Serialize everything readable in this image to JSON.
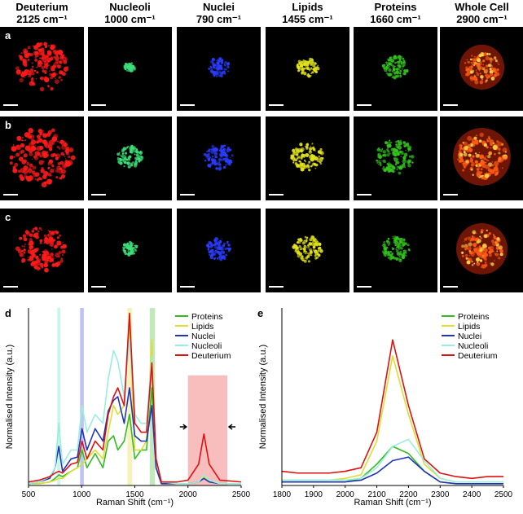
{
  "image_grid": {
    "columns": [
      {
        "name": "Deuterium",
        "wavenumber": "2125 cm⁻¹",
        "color": "#ff1a1a"
      },
      {
        "name": "Nucleoli",
        "wavenumber": "1000 cm⁻¹",
        "color": "#3de07a"
      },
      {
        "name": "Nuclei",
        "wavenumber": "790 cm⁻¹",
        "color": "#2a3cff"
      },
      {
        "name": "Lipids",
        "wavenumber": "1455 cm⁻¹",
        "color": "#e4e41e"
      },
      {
        "name": "Proteins",
        "wavenumber": "1660 cm⁻¹",
        "color": "#33c41c"
      },
      {
        "name": "Whole Cell",
        "wavenumber": "2900 cm⁻¹",
        "color": "#ff5a14"
      }
    ],
    "rows": [
      "a",
      "b",
      "c"
    ]
  },
  "chart_data": [
    {
      "type": "line",
      "panel": "d",
      "x_label": "Raman Shift (cm⁻¹)",
      "y_label": "Normalised Intensity (a.u.)",
      "xlim": [
        500,
        2500
      ],
      "xticks": [
        500,
        1000,
        1500,
        2000,
        2500
      ],
      "ylim": [
        0,
        1
      ],
      "yticks": [],
      "highlight_bands": [
        {
          "x": [
            770,
            800
          ],
          "color": "#bff3ea"
        },
        {
          "x": [
            985,
            1020
          ],
          "color": "#b4b8f0"
        },
        {
          "x": [
            1430,
            1475
          ],
          "color": "#f3f0b0"
        },
        {
          "x": [
            1640,
            1690
          ],
          "color": "#b9e4b0"
        },
        {
          "x": [
            2000,
            2370
          ],
          "color": "#f7b3b3"
        }
      ],
      "x": [
        500,
        600,
        700,
        750,
        785,
        820,
        900,
        960,
        1003,
        1050,
        1127,
        1200,
        1250,
        1300,
        1340,
        1400,
        1450,
        1500,
        1560,
        1610,
        1660,
        1700,
        1750,
        1900,
        2000,
        2100,
        2150,
        2200,
        2300,
        2500
      ],
      "series": [
        {
          "name": "Proteins",
          "color": "#33bb22",
          "values": [
            0.01,
            0.01,
            0.02,
            0.04,
            0.06,
            0.05,
            0.08,
            0.1,
            0.2,
            0.1,
            0.18,
            0.1,
            0.25,
            0.28,
            0.2,
            0.25,
            0.4,
            0.15,
            0.2,
            0.2,
            0.55,
            0.1,
            0.01,
            0.01,
            0.01,
            0.02,
            0.05,
            0.02,
            0.01,
            0.01
          ]
        },
        {
          "name": "Lipids",
          "color": "#dddd33",
          "values": [
            0.01,
            0.01,
            0.02,
            0.03,
            0.04,
            0.04,
            0.08,
            0.1,
            0.12,
            0.15,
            0.2,
            0.15,
            0.3,
            0.45,
            0.4,
            0.45,
            0.92,
            0.2,
            0.2,
            0.25,
            0.82,
            0.1,
            0.01,
            0.01,
            0.01,
            0.02,
            0.05,
            0.02,
            0.01,
            0.01
          ]
        },
        {
          "name": "Nuclei",
          "color": "#2233bb",
          "values": [
            0.01,
            0.02,
            0.04,
            0.1,
            0.22,
            0.08,
            0.15,
            0.16,
            0.32,
            0.2,
            0.32,
            0.25,
            0.42,
            0.48,
            0.5,
            0.35,
            0.55,
            0.28,
            0.25,
            0.25,
            0.45,
            0.1,
            0.01,
            0.01,
            0.01,
            0.02,
            0.04,
            0.02,
            0.01,
            0.01
          ]
        },
        {
          "name": "Nucleoli",
          "color": "#99eedd",
          "values": [
            0.01,
            0.02,
            0.05,
            0.1,
            0.35,
            0.12,
            0.2,
            0.2,
            0.45,
            0.3,
            0.4,
            0.35,
            0.6,
            0.76,
            0.7,
            0.5,
            0.82,
            0.4,
            0.35,
            0.35,
            0.73,
            0.15,
            0.02,
            0.01,
            0.01,
            0.02,
            0.06,
            0.03,
            0.01,
            0.01
          ]
        },
        {
          "name": "Deuterium",
          "color": "#dd1111",
          "values": [
            0.02,
            0.03,
            0.05,
            0.07,
            0.08,
            0.07,
            0.12,
            0.13,
            0.25,
            0.15,
            0.25,
            0.2,
            0.4,
            0.5,
            0.55,
            0.45,
            0.97,
            0.35,
            0.3,
            0.3,
            0.69,
            0.15,
            0.02,
            0.02,
            0.03,
            0.12,
            0.29,
            0.12,
            0.03,
            0.02
          ]
        }
      ]
    },
    {
      "type": "line",
      "panel": "e",
      "x_label": "Raman Shift (cm⁻¹)",
      "y_label": "Normalised Intensity (a.u.)",
      "xlim": [
        1800,
        2500
      ],
      "xticks": [
        1800,
        1900,
        2000,
        2100,
        2200,
        2300,
        2400,
        2500
      ],
      "ylim": [
        0,
        1
      ],
      "yticks": [],
      "x": [
        1800,
        1850,
        1900,
        1950,
        2000,
        2050,
        2100,
        2150,
        2200,
        2250,
        2300,
        2350,
        2400,
        2450,
        2500
      ],
      "series": [
        {
          "name": "Proteins",
          "color": "#33bb22",
          "values": [
            0.02,
            0.02,
            0.02,
            0.02,
            0.02,
            0.04,
            0.12,
            0.22,
            0.18,
            0.08,
            0.02,
            0.01,
            0.01,
            0.01,
            0.01
          ]
        },
        {
          "name": "Lipids",
          "color": "#dddd33",
          "values": [
            0.03,
            0.03,
            0.03,
            0.03,
            0.04,
            0.06,
            0.25,
            0.73,
            0.4,
            0.12,
            0.04,
            0.02,
            0.02,
            0.02,
            0.02
          ]
        },
        {
          "name": "Nuclei",
          "color": "#2233bb",
          "values": [
            0.02,
            0.02,
            0.02,
            0.02,
            0.02,
            0.03,
            0.07,
            0.14,
            0.16,
            0.08,
            0.02,
            0.01,
            0.01,
            0.01,
            0.01
          ]
        },
        {
          "name": "Nucleoli",
          "color": "#99eedd",
          "values": [
            0.03,
            0.03,
            0.03,
            0.03,
            0.03,
            0.04,
            0.1,
            0.22,
            0.26,
            0.14,
            0.04,
            0.02,
            0.02,
            0.02,
            0.02
          ]
        },
        {
          "name": "Deuterium",
          "color": "#dd1111",
          "values": [
            0.08,
            0.07,
            0.07,
            0.07,
            0.08,
            0.1,
            0.3,
            0.82,
            0.45,
            0.15,
            0.07,
            0.05,
            0.04,
            0.05,
            0.05
          ]
        }
      ]
    }
  ]
}
